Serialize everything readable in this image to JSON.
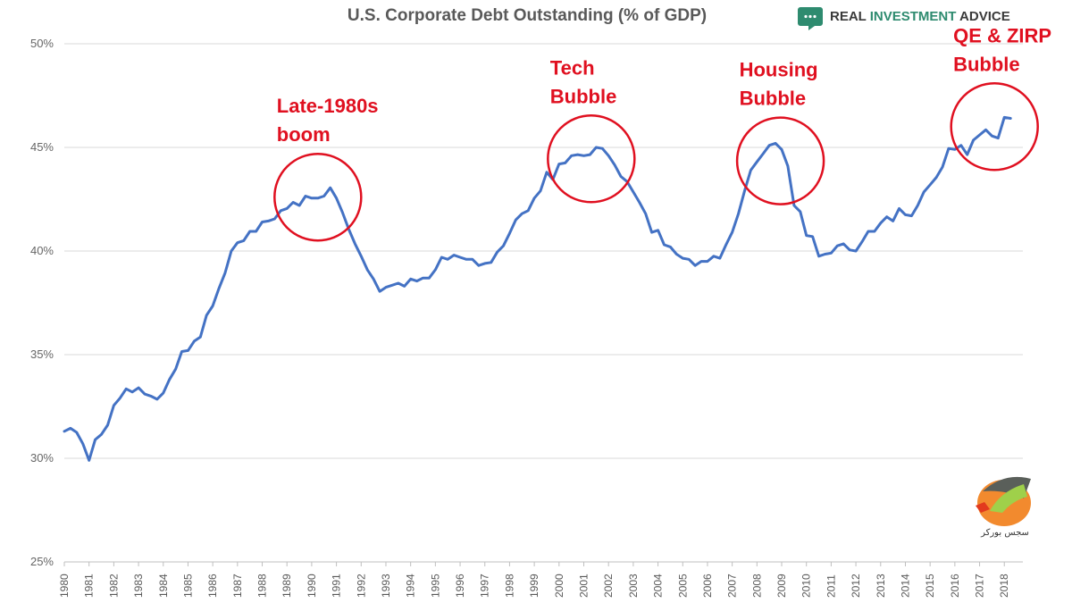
{
  "brand": {
    "name_part1": "REAL ",
    "name_part2": "INVESTMENT",
    "name_part3": " ADVICE",
    "color_dark": "#3a3a3a",
    "color_accent": "#2e8b6f",
    "icon": "chat-bubble-icon"
  },
  "watermark": {
    "text": "سجس بورکر",
    "icon": "horse-logo-icon"
  },
  "colors": {
    "line": "#4472c4",
    "annotation": "#e01020",
    "grid": "#d9d9d9"
  },
  "chart_data": {
    "type": "line",
    "title": "U.S. Corporate Debt Outstanding (% of GDP)",
    "xlabel": "",
    "ylabel": "",
    "xlim": [
      1980,
      2018.75
    ],
    "ylim": [
      25,
      50
    ],
    "y_ticks": [
      25,
      30,
      35,
      40,
      45,
      50
    ],
    "y_tick_labels": [
      "25%",
      "30%",
      "35%",
      "40%",
      "45%",
      "50%"
    ],
    "x_ticks": [
      "1980",
      "1981",
      "1982",
      "1983",
      "1984",
      "1985",
      "1986",
      "1987",
      "1988",
      "1989",
      "1990",
      "1991",
      "1992",
      "1993",
      "1994",
      "1995",
      "1996",
      "1997",
      "1998",
      "1999",
      "2000",
      "2001",
      "2002",
      "2003",
      "2004",
      "2005",
      "2006",
      "2007",
      "2008",
      "2009",
      "2010",
      "2011",
      "2012",
      "2013",
      "2014",
      "2015",
      "2016",
      "2017",
      "2018"
    ],
    "grid": "horizontal",
    "legend": "none",
    "series": [
      {
        "values": [
          [
            1980.0,
            31.3
          ],
          [
            1980.25,
            31.45
          ],
          [
            1980.5,
            31.25
          ],
          [
            1980.75,
            30.7
          ],
          [
            1981.0,
            29.9
          ],
          [
            1981.25,
            30.9
          ],
          [
            1981.5,
            31.15
          ],
          [
            1981.75,
            31.6
          ],
          [
            1982.0,
            32.55
          ],
          [
            1982.25,
            32.9
          ],
          [
            1982.5,
            33.35
          ],
          [
            1982.75,
            33.2
          ],
          [
            1983.0,
            33.4
          ],
          [
            1983.25,
            33.1
          ],
          [
            1983.5,
            33.0
          ],
          [
            1983.75,
            32.85
          ],
          [
            1984.0,
            33.15
          ],
          [
            1984.25,
            33.8
          ],
          [
            1984.5,
            34.3
          ],
          [
            1984.75,
            35.15
          ],
          [
            1985.0,
            35.2
          ],
          [
            1985.25,
            35.65
          ],
          [
            1985.5,
            35.85
          ],
          [
            1985.75,
            36.9
          ],
          [
            1986.0,
            37.35
          ],
          [
            1986.25,
            38.2
          ],
          [
            1986.5,
            38.95
          ],
          [
            1986.75,
            40.0
          ],
          [
            1987.0,
            40.4
          ],
          [
            1987.25,
            40.5
          ],
          [
            1987.5,
            40.95
          ],
          [
            1987.75,
            40.95
          ],
          [
            1988.0,
            41.4
          ],
          [
            1988.25,
            41.45
          ],
          [
            1988.5,
            41.55
          ],
          [
            1988.75,
            41.95
          ],
          [
            1989.0,
            42.05
          ],
          [
            1989.25,
            42.35
          ],
          [
            1989.5,
            42.2
          ],
          [
            1989.75,
            42.65
          ],
          [
            1990.0,
            42.55
          ],
          [
            1990.25,
            42.55
          ],
          [
            1990.5,
            42.65
          ],
          [
            1990.75,
            43.05
          ],
          [
            1991.0,
            42.55
          ],
          [
            1991.25,
            41.85
          ],
          [
            1991.5,
            41.05
          ],
          [
            1991.75,
            40.35
          ],
          [
            1992.0,
            39.75
          ],
          [
            1992.25,
            39.1
          ],
          [
            1992.5,
            38.65
          ],
          [
            1992.75,
            38.05
          ],
          [
            1993.0,
            38.25
          ],
          [
            1993.25,
            38.35
          ],
          [
            1993.5,
            38.45
          ],
          [
            1993.75,
            38.3
          ],
          [
            1994.0,
            38.65
          ],
          [
            1994.25,
            38.55
          ],
          [
            1994.5,
            38.7
          ],
          [
            1994.75,
            38.7
          ],
          [
            1995.0,
            39.1
          ],
          [
            1995.25,
            39.7
          ],
          [
            1995.5,
            39.6
          ],
          [
            1995.75,
            39.8
          ],
          [
            1996.0,
            39.7
          ],
          [
            1996.25,
            39.6
          ],
          [
            1996.5,
            39.6
          ],
          [
            1996.75,
            39.3
          ],
          [
            1997.0,
            39.4
          ],
          [
            1997.25,
            39.45
          ],
          [
            1997.5,
            39.95
          ],
          [
            1997.75,
            40.25
          ],
          [
            1998.0,
            40.85
          ],
          [
            1998.25,
            41.5
          ],
          [
            1998.5,
            41.8
          ],
          [
            1998.75,
            41.95
          ],
          [
            1999.0,
            42.55
          ],
          [
            1999.25,
            42.9
          ],
          [
            1999.5,
            43.8
          ],
          [
            1999.75,
            43.45
          ],
          [
            2000.0,
            44.2
          ],
          [
            2000.25,
            44.25
          ],
          [
            2000.5,
            44.6
          ],
          [
            2000.75,
            44.65
          ],
          [
            2001.0,
            44.6
          ],
          [
            2001.25,
            44.65
          ],
          [
            2001.5,
            45.0
          ],
          [
            2001.75,
            44.95
          ],
          [
            2002.0,
            44.6
          ],
          [
            2002.25,
            44.15
          ],
          [
            2002.5,
            43.6
          ],
          [
            2002.75,
            43.35
          ],
          [
            2003.0,
            42.85
          ],
          [
            2003.25,
            42.35
          ],
          [
            2003.5,
            41.8
          ],
          [
            2003.75,
            40.9
          ],
          [
            2004.0,
            41.0
          ],
          [
            2004.25,
            40.3
          ],
          [
            2004.5,
            40.2
          ],
          [
            2004.75,
            39.85
          ],
          [
            2005.0,
            39.65
          ],
          [
            2005.25,
            39.6
          ],
          [
            2005.5,
            39.3
          ],
          [
            2005.75,
            39.5
          ],
          [
            2006.0,
            39.5
          ],
          [
            2006.25,
            39.75
          ],
          [
            2006.5,
            39.65
          ],
          [
            2006.75,
            40.3
          ],
          [
            2007.0,
            40.9
          ],
          [
            2007.25,
            41.8
          ],
          [
            2007.5,
            42.9
          ],
          [
            2007.75,
            43.9
          ],
          [
            2008.0,
            44.3
          ],
          [
            2008.25,
            44.7
          ],
          [
            2008.5,
            45.1
          ],
          [
            2008.75,
            45.2
          ],
          [
            2009.0,
            44.9
          ],
          [
            2009.25,
            44.1
          ],
          [
            2009.5,
            42.2
          ],
          [
            2009.75,
            41.9
          ],
          [
            2010.0,
            40.75
          ],
          [
            2010.25,
            40.7
          ],
          [
            2010.5,
            39.75
          ],
          [
            2010.75,
            39.85
          ],
          [
            2011.0,
            39.9
          ],
          [
            2011.25,
            40.25
          ],
          [
            2011.5,
            40.35
          ],
          [
            2011.75,
            40.05
          ],
          [
            2012.0,
            40.0
          ],
          [
            2012.25,
            40.45
          ],
          [
            2012.5,
            40.95
          ],
          [
            2012.75,
            40.95
          ],
          [
            2013.0,
            41.35
          ],
          [
            2013.25,
            41.65
          ],
          [
            2013.5,
            41.45
          ],
          [
            2013.75,
            42.05
          ],
          [
            2014.0,
            41.75
          ],
          [
            2014.25,
            41.7
          ],
          [
            2014.5,
            42.2
          ],
          [
            2014.75,
            42.85
          ],
          [
            2015.0,
            43.2
          ],
          [
            2015.25,
            43.55
          ],
          [
            2015.5,
            44.05
          ],
          [
            2015.75,
            44.95
          ],
          [
            2016.0,
            44.9
          ],
          [
            2016.25,
            45.1
          ],
          [
            2016.5,
            44.65
          ],
          [
            2016.75,
            45.35
          ],
          [
            2017.0,
            45.6
          ],
          [
            2017.25,
            45.85
          ],
          [
            2017.5,
            45.55
          ],
          [
            2017.75,
            45.45
          ],
          [
            2018.0,
            46.45
          ],
          [
            2018.25,
            46.4
          ]
        ]
      }
    ],
    "annotations": [
      {
        "lines": [
          "Late-1980s",
          "boom"
        ],
        "at": [
          1990.25,
          42.6
        ],
        "radius_years": 1.75
      },
      {
        "lines": [
          "Tech",
          "Bubble"
        ],
        "at": [
          2001.3,
          44.45
        ],
        "radius_years": 1.75
      },
      {
        "lines": [
          "Housing",
          "Bubble"
        ],
        "at": [
          2008.95,
          44.35
        ],
        "radius_years": 1.75
      },
      {
        "lines": [
          "QE & ZIRP",
          "Bubble"
        ],
        "at": [
          2017.6,
          46.0
        ],
        "radius_years": 1.75
      }
    ]
  }
}
